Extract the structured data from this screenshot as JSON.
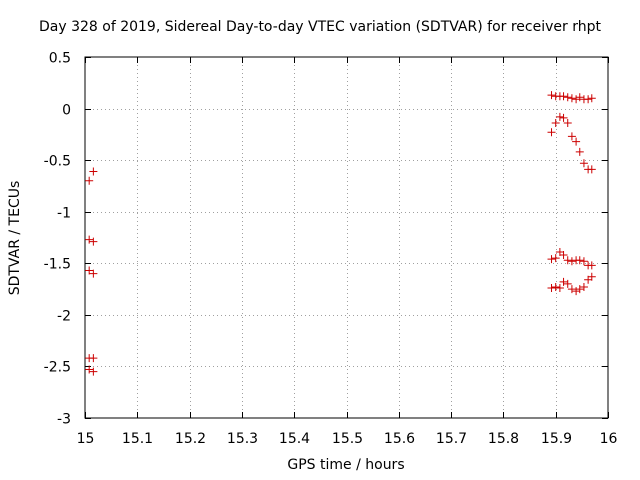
{
  "chart_data": {
    "type": "scatter",
    "title": "Day 328 of 2019, Sidereal Day-to-day VTEC variation (SDTVAR) for receiver rhpt",
    "xlabel": "GPS time / hours",
    "ylabel": "SDTVAR / TECUs",
    "xlim": [
      15,
      16
    ],
    "ylim": [
      -3,
      0.5
    ],
    "xticks": [
      15,
      15.1,
      15.2,
      15.3,
      15.4,
      15.5,
      15.6,
      15.7,
      15.8,
      15.9,
      16
    ],
    "xtick_labels": [
      "15",
      "15.1",
      "15.2",
      "15.3",
      "15.4",
      "15.5",
      "15.6",
      "15.7",
      "15.8",
      "15.9",
      "16"
    ],
    "yticks": [
      0.5,
      0,
      -0.5,
      -1,
      -1.5,
      -2,
      -2.5,
      -3
    ],
    "ytick_labels": [
      "0.5",
      "0",
      "-0.5",
      "-1",
      "-1.5",
      "-2",
      "-2.5",
      "-3"
    ],
    "grid": true,
    "marker": "+",
    "marker_color": "#cc0000",
    "series": [
      {
        "name": "SDTVAR",
        "x": [
          15.008,
          15.016,
          15.008,
          15.016,
          15.008,
          15.016,
          15.008,
          15.016,
          15.008,
          15.016,
          15.892,
          15.9,
          15.908,
          15.915,
          15.923,
          15.931,
          15.939,
          15.946,
          15.954,
          15.962,
          15.969,
          15.892,
          15.9,
          15.908,
          15.915,
          15.923,
          15.931,
          15.939,
          15.946,
          15.954,
          15.962,
          15.969,
          15.892,
          15.9,
          15.908,
          15.915,
          15.923,
          15.931,
          15.939,
          15.946,
          15.954,
          15.962,
          15.969,
          15.892,
          15.9,
          15.908,
          15.915,
          15.923,
          15.931,
          15.939,
          15.946,
          15.954,
          15.962,
          15.969
        ],
        "y": [
          -0.7,
          -0.61,
          -1.27,
          -1.29,
          -1.57,
          -1.6,
          -2.42,
          -2.42,
          -2.53,
          -2.55,
          0.13,
          0.12,
          0.12,
          0.12,
          0.11,
          0.1,
          0.09,
          0.11,
          0.09,
          0.09,
          0.1,
          -0.23,
          -0.14,
          -0.08,
          -0.09,
          -0.14,
          -0.27,
          -0.32,
          -0.42,
          -0.53,
          -0.59,
          -0.59,
          -1.46,
          -1.45,
          -1.39,
          -1.42,
          -1.47,
          -1.48,
          -1.47,
          -1.47,
          -1.48,
          -1.52,
          -1.52,
          -1.74,
          -1.73,
          -1.74,
          -1.68,
          -1.7,
          -1.75,
          -1.77,
          -1.75,
          -1.73,
          -1.66,
          -1.63
        ]
      }
    ]
  }
}
